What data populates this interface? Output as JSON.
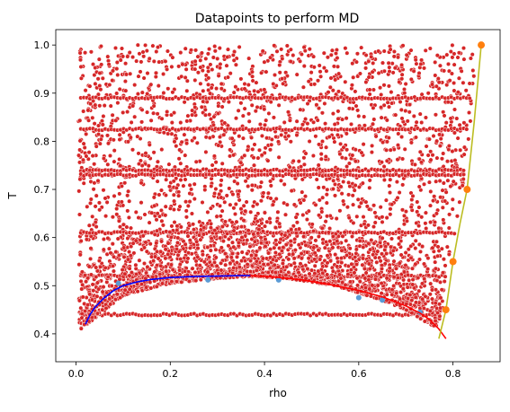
{
  "chart_data": {
    "type": "scatter",
    "title": "Datapoints to perform MD",
    "xlabel": "rho",
    "ylabel": "T",
    "xlim": [
      -0.043,
      0.9
    ],
    "ylim": [
      0.342,
      1.032
    ],
    "xticks": [
      0.0,
      0.2,
      0.4,
      0.6,
      0.8
    ],
    "xtick_labels": [
      "0.0",
      "0.2",
      "0.4",
      "0.6",
      "0.8"
    ],
    "yticks": [
      0.4,
      0.5,
      0.6,
      0.7,
      0.8,
      0.9,
      1.0
    ],
    "ytick_labels": [
      "0.4",
      "0.5",
      "0.6",
      "0.7",
      "0.8",
      "0.9",
      "1.0"
    ],
    "grid": false,
    "legend": null,
    "series": [
      {
        "kind": "scatter",
        "color": "#d62728",
        "marker_edge": "#ffffff",
        "description_of_region": "dense field of random points filling the region above the coexistence curve",
        "rho_range": [
          0.0,
          0.8
        ],
        "T_range": [
          0.41,
          1.0
        ],
        "dense_T_levels": [
          0.89,
          0.825,
          0.74,
          0.73,
          0.61,
          0.52,
          0.44
        ],
        "boundary": {
          "rho": [
            0.01,
            0.05,
            0.1,
            0.2,
            0.3,
            0.37,
            0.45,
            0.55,
            0.6,
            0.65,
            0.7,
            0.75,
            0.78,
            0.79
          ],
          "T_min": [
            0.41,
            0.44,
            0.48,
            0.505,
            0.515,
            0.52,
            0.515,
            0.5,
            0.485,
            0.47,
            0.45,
            0.42,
            0.41,
            0.4
          ]
        }
      },
      {
        "kind": "line",
        "name_hint": "vapor branch",
        "color": "#0000ff",
        "x": [
          0.02,
          0.03,
          0.04,
          0.06,
          0.08,
          0.1,
          0.13,
          0.16,
          0.2,
          0.25,
          0.3,
          0.35,
          0.37
        ],
        "y": [
          0.42,
          0.44,
          0.455,
          0.475,
          0.49,
          0.5,
          0.508,
          0.513,
          0.517,
          0.519,
          0.52,
          0.521,
          0.521
        ]
      },
      {
        "kind": "line",
        "name_hint": "liquid branch",
        "color": "#ff0000",
        "x": [
          0.37,
          0.42,
          0.48,
          0.54,
          0.6,
          0.65,
          0.7,
          0.73,
          0.75,
          0.77,
          0.785
        ],
        "y": [
          0.521,
          0.518,
          0.512,
          0.502,
          0.49,
          0.477,
          0.458,
          0.443,
          0.43,
          0.41,
          0.39
        ]
      },
      {
        "kind": "scatter",
        "name_hint": "coexistence points",
        "color": "#5b9bd5",
        "x": [
          0.09,
          0.28,
          0.43,
          0.6,
          0.65,
          0.73
        ],
        "y": [
          0.505,
          0.512,
          0.512,
          0.475,
          0.47,
          0.445
        ]
      },
      {
        "kind": "line",
        "name_hint": "high-density line",
        "color": "#bcbd22",
        "x": [
          0.77,
          0.785,
          0.8,
          0.815,
          0.83,
          0.845,
          0.86
        ],
        "y": [
          0.39,
          0.45,
          0.55,
          0.63,
          0.7,
          0.84,
          1.0
        ]
      },
      {
        "kind": "scatter",
        "name_hint": "high-density points",
        "color": "#ff7f0e",
        "x": [
          0.785,
          0.8,
          0.83,
          0.86
        ],
        "y": [
          0.45,
          0.55,
          0.7,
          1.0
        ]
      }
    ]
  }
}
